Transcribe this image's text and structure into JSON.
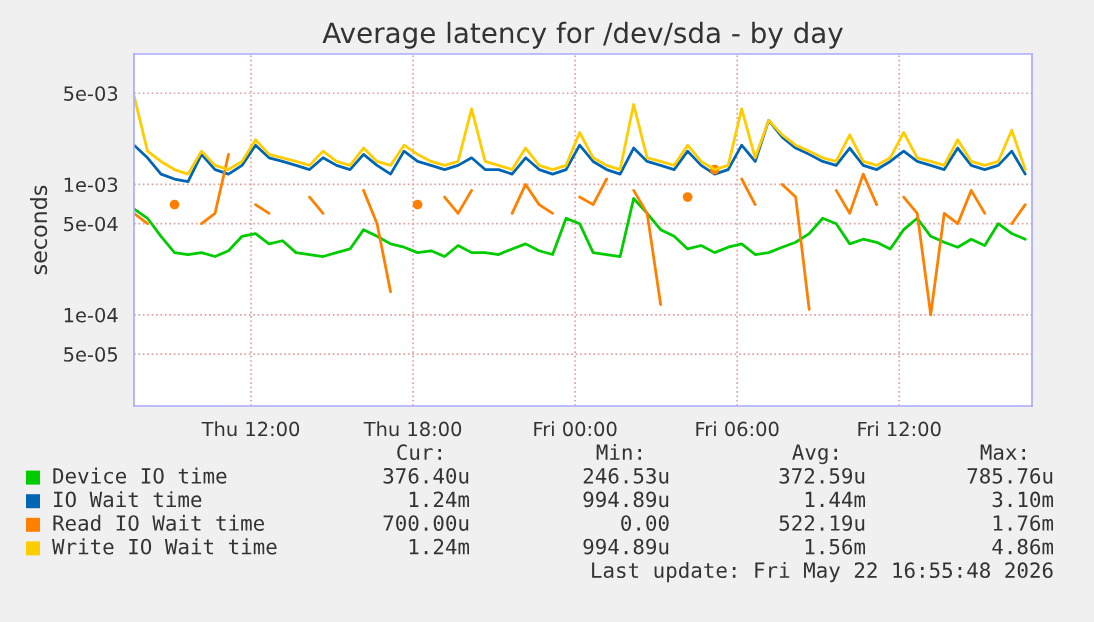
{
  "chart_data": {
    "type": "line",
    "title": "Average latency for /dev/sda - by day",
    "ylabel": "seconds",
    "log": "y",
    "grid": true,
    "legend": "bottom",
    "xlim": [
      "2026-05-21T07:40",
      "2026-05-22T16:55"
    ],
    "xticks": [
      {
        "value": "2026-05-21T12:00",
        "label": "Thu 12:00"
      },
      {
        "value": "2026-05-21T18:00",
        "label": "Thu 18:00"
      },
      {
        "value": "2026-05-22T00:00",
        "label": "Fri 00:00"
      },
      {
        "value": "2026-05-22T06:00",
        "label": "Fri 06:00"
      },
      {
        "value": "2026-05-22T12:00",
        "label": "Fri 12:00"
      }
    ],
    "ylim": [
      2e-05,
      0.01
    ],
    "yticks": [
      {
        "value": 5e-05,
        "label": "5e-05"
      },
      {
        "value": 0.0001,
        "label": "1e-04"
      },
      {
        "value": 0.0005,
        "label": "5e-04"
      },
      {
        "value": 0.001,
        "label": "1e-03"
      },
      {
        "value": 0.005,
        "label": "5e-03"
      }
    ],
    "x": [
      "2026-05-21T07:40",
      "2026-05-21T08:10",
      "2026-05-21T08:40",
      "2026-05-21T09:10",
      "2026-05-21T09:40",
      "2026-05-21T10:10",
      "2026-05-21T10:40",
      "2026-05-21T11:10",
      "2026-05-21T11:40",
      "2026-05-21T12:10",
      "2026-05-21T12:40",
      "2026-05-21T13:10",
      "2026-05-21T13:40",
      "2026-05-21T14:10",
      "2026-05-21T14:40",
      "2026-05-21T15:10",
      "2026-05-21T15:40",
      "2026-05-21T16:10",
      "2026-05-21T16:40",
      "2026-05-21T17:10",
      "2026-05-21T17:40",
      "2026-05-21T18:10",
      "2026-05-21T18:40",
      "2026-05-21T19:10",
      "2026-05-21T19:40",
      "2026-05-21T20:10",
      "2026-05-21T20:40",
      "2026-05-21T21:10",
      "2026-05-21T21:40",
      "2026-05-21T22:10",
      "2026-05-21T22:40",
      "2026-05-21T23:10",
      "2026-05-21T23:40",
      "2026-05-22T00:10",
      "2026-05-22T00:40",
      "2026-05-22T01:10",
      "2026-05-22T01:40",
      "2026-05-22T02:10",
      "2026-05-22T02:40",
      "2026-05-22T03:10",
      "2026-05-22T03:40",
      "2026-05-22T04:10",
      "2026-05-22T04:40",
      "2026-05-22T05:10",
      "2026-05-22T05:40",
      "2026-05-22T06:10",
      "2026-05-22T06:40",
      "2026-05-22T07:10",
      "2026-05-22T07:40",
      "2026-05-22T08:10",
      "2026-05-22T08:40",
      "2026-05-22T09:10",
      "2026-05-22T09:40",
      "2026-05-22T10:10",
      "2026-05-22T10:40",
      "2026-05-22T11:10",
      "2026-05-22T11:40",
      "2026-05-22T12:10",
      "2026-05-22T12:40",
      "2026-05-22T13:10",
      "2026-05-22T13:40",
      "2026-05-22T14:10",
      "2026-05-22T14:40",
      "2026-05-22T15:10",
      "2026-05-22T15:40",
      "2026-05-22T16:10",
      "2026-05-22T16:40"
    ],
    "series": [
      {
        "name": "Device IO time",
        "color": "#00cc00",
        "values": [
          0.00065,
          0.00055,
          0.0004,
          0.0003,
          0.00029,
          0.0003,
          0.00028,
          0.00031,
          0.0004,
          0.00042,
          0.00035,
          0.00037,
          0.0003,
          0.00029,
          0.00028,
          0.0003,
          0.00032,
          0.00045,
          0.0004,
          0.00035,
          0.00033,
          0.0003,
          0.00031,
          0.00028,
          0.00034,
          0.0003,
          0.0003,
          0.00029,
          0.00032,
          0.00035,
          0.00031,
          0.00029,
          0.00055,
          0.0005,
          0.0003,
          0.00029,
          0.00028,
          0.00078,
          0.0006,
          0.00045,
          0.0004,
          0.00032,
          0.00034,
          0.0003,
          0.00033,
          0.00035,
          0.00029,
          0.0003,
          0.00033,
          0.00036,
          0.00042,
          0.00055,
          0.0005,
          0.00035,
          0.00038,
          0.00036,
          0.00032,
          0.00045,
          0.00055,
          0.0004,
          0.00036,
          0.00033,
          0.00038,
          0.00034,
          0.0005,
          0.00042,
          0.00038
        ]
      },
      {
        "name": "IO Wait time",
        "color": "#0066b3",
        "values": [
          0.002,
          0.0016,
          0.0012,
          0.0011,
          0.00105,
          0.0017,
          0.0013,
          0.0012,
          0.0014,
          0.002,
          0.0016,
          0.0015,
          0.0014,
          0.0013,
          0.0016,
          0.0014,
          0.0013,
          0.0017,
          0.0014,
          0.0012,
          0.0018,
          0.0015,
          0.0014,
          0.0013,
          0.0014,
          0.0016,
          0.0013,
          0.0013,
          0.0012,
          0.0016,
          0.0013,
          0.0012,
          0.0013,
          0.002,
          0.0015,
          0.0013,
          0.0012,
          0.0019,
          0.0015,
          0.0014,
          0.0013,
          0.0018,
          0.0014,
          0.0012,
          0.0013,
          0.002,
          0.0015,
          0.0031,
          0.0023,
          0.0019,
          0.0017,
          0.0015,
          0.0014,
          0.0019,
          0.0014,
          0.0013,
          0.0015,
          0.0018,
          0.0015,
          0.0014,
          0.0013,
          0.0019,
          0.0014,
          0.0013,
          0.0014,
          0.0018,
          0.0012
        ]
      },
      {
        "name": "Read IO Wait time",
        "color": "#ff8000",
        "values": [
          0.0006,
          0.0005,
          null,
          0.0007,
          null,
          0.0005,
          0.0006,
          0.0017,
          null,
          0.0007,
          0.0006,
          null,
          null,
          0.0008,
          0.0006,
          null,
          null,
          0.0009,
          0.0005,
          0.00015,
          null,
          0.0007,
          null,
          0.0008,
          0.0006,
          0.0009,
          null,
          null,
          0.0006,
          0.001,
          0.0007,
          0.0006,
          null,
          0.0008,
          0.0007,
          0.0011,
          null,
          0.0009,
          0.0006,
          0.00012,
          null,
          0.0008,
          null,
          0.0013,
          null,
          0.0011,
          0.0007,
          null,
          0.001,
          0.0008,
          0.00011,
          null,
          0.0009,
          0.0006,
          0.0012,
          0.0007,
          null,
          0.0008,
          0.0006,
          0.0001,
          0.0006,
          0.0005,
          0.0009,
          0.0006,
          null,
          0.0005,
          0.0007
        ]
      },
      {
        "name": "Write IO Wait time",
        "color": "#ffcc00",
        "values": [
          0.0048,
          0.0018,
          0.0015,
          0.0013,
          0.0012,
          0.0018,
          0.0014,
          0.0013,
          0.0015,
          0.0022,
          0.0017,
          0.0016,
          0.0015,
          0.0014,
          0.0018,
          0.0015,
          0.0014,
          0.0019,
          0.0015,
          0.0014,
          0.002,
          0.0017,
          0.0015,
          0.0014,
          0.0015,
          0.0038,
          0.0015,
          0.0014,
          0.0013,
          0.0019,
          0.0014,
          0.0013,
          0.0014,
          0.0025,
          0.0016,
          0.0014,
          0.0013,
          0.0041,
          0.0016,
          0.0015,
          0.0014,
          0.002,
          0.0015,
          0.0013,
          0.0014,
          0.0038,
          0.0016,
          0.0031,
          0.0024,
          0.002,
          0.0018,
          0.0016,
          0.0015,
          0.0024,
          0.0015,
          0.0014,
          0.0016,
          0.0025,
          0.0016,
          0.0015,
          0.0014,
          0.0022,
          0.0015,
          0.0014,
          0.0015,
          0.0026,
          0.0013
        ]
      }
    ],
    "annotations": [
      "Cur:",
      "Min:",
      "Avg:",
      "Max:",
      "376.40u",
      "246.53u",
      "372.59u",
      "785.76u",
      "1.24m",
      "994.89u",
      "1.44m",
      "3.10m",
      "700.00u",
      "0.00",
      "522.19u",
      "1.76m",
      "1.24m",
      "994.89u",
      "1.56m",
      "4.86m",
      "Last update: Fri May 22 16:55:48 2026"
    ]
  }
}
